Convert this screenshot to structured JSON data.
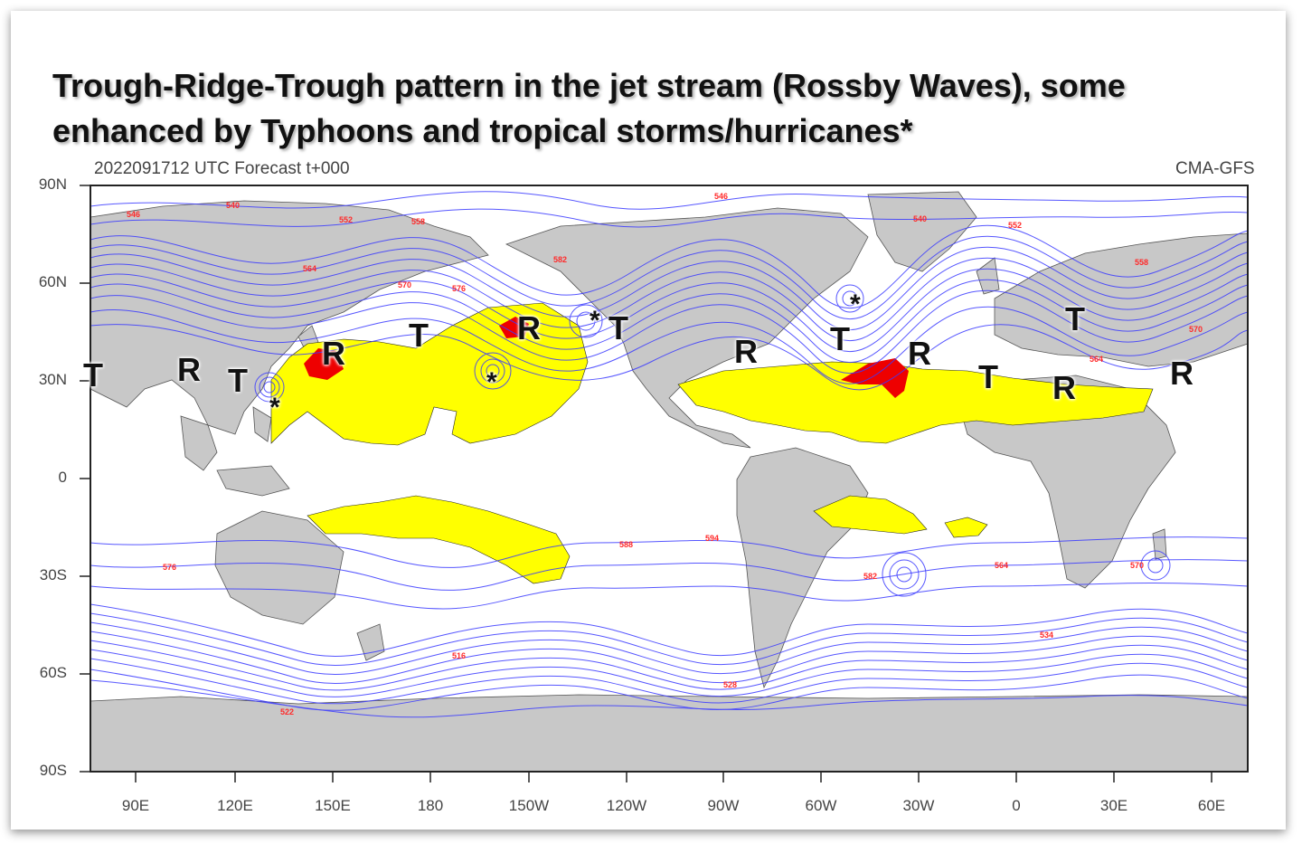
{
  "title_lines": [
    "Trough-Ridge-Trough pattern in the jet stream (Rossby Waves), some",
    "enhanced by Typhoons and tropical storms/hurricanes*"
  ],
  "run_label": "2022091712 UTC Forecast t+000",
  "model_label": "CMA-GFS",
  "y_axis_labels": [
    "90N",
    "60N",
    "30N",
    "0",
    "30S",
    "60S",
    "90S"
  ],
  "x_axis_labels": [
    "90E",
    "120E",
    "150E",
    "180",
    "150W",
    "120W",
    "90W",
    "60W",
    "30W",
    "0",
    "30E",
    "60E"
  ],
  "contour_labels": [
    "546",
    "540",
    "552",
    "558",
    "564",
    "570",
    "576",
    "582",
    "588",
    "594",
    "516",
    "522",
    "528",
    "534"
  ],
  "markers": {
    "trough": "T",
    "ridge": "R",
    "storm": "*"
  },
  "colors": {
    "land": "#c8c8c8",
    "contour": "#3a3aff",
    "contour_label": "#ff2a2a",
    "high_zone": "#ffff00",
    "high_core": "#ee0000"
  }
}
